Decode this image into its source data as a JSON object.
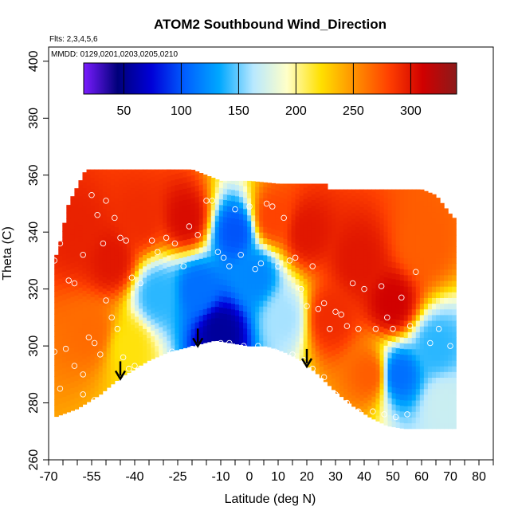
{
  "chart_data": {
    "type": "heatmap",
    "title": "ATOM2 Southbound Wind_Direction",
    "flights_note": "Flts: 2,3,4,5,6",
    "dates_note": "MMDD: 0129,0201,0203,0205,0210",
    "xlabel": "Latitude (deg N)",
    "ylabel": "Theta (C)",
    "xlim": [
      -70,
      85
    ],
    "ylim": [
      260,
      405
    ],
    "x_ticks": [
      -70,
      -55,
      -40,
      -25,
      -10,
      0,
      10,
      20,
      30,
      40,
      50,
      60,
      70,
      80
    ],
    "x_minor_ticks": [
      -65,
      -60,
      -50,
      -45,
      -35,
      -30,
      -20,
      -15,
      -5,
      5,
      15,
      25,
      35,
      45,
      55,
      65,
      75,
      85
    ],
    "y_ticks": [
      260,
      280,
      300,
      320,
      340,
      360,
      380,
      400
    ],
    "colorbar": {
      "range": [
        15,
        340
      ],
      "ticks": [
        50,
        100,
        150,
        200,
        250,
        300
      ],
      "colors": [
        "#7a1cff",
        "#00007a",
        "#0000d8",
        "#0060ff",
        "#00a8ff",
        "#b8e8ff",
        "#ffffc8",
        "#ffe000",
        "#ff9000",
        "#ff4000",
        "#d00000",
        "#8c1a1a"
      ]
    },
    "surface_theta": [
      [
        -68,
        275
      ],
      [
        -60,
        278
      ],
      [
        -52,
        283
      ],
      [
        -45,
        289
      ],
      [
        -40,
        292
      ],
      [
        -35,
        295
      ],
      [
        -28,
        298
      ],
      [
        -20,
        300
      ],
      [
        -12,
        302
      ],
      [
        -6,
        301
      ],
      [
        0,
        300
      ],
      [
        6,
        300
      ],
      [
        12,
        298
      ],
      [
        18,
        295
      ],
      [
        24,
        290
      ],
      [
        30,
        284
      ],
      [
        36,
        279
      ],
      [
        42,
        275
      ],
      [
        48,
        272
      ],
      [
        54,
        271
      ],
      [
        62,
        271
      ],
      [
        71,
        271
      ]
    ],
    "top_theta": [
      [
        -67,
        332
      ],
      [
        -63,
        350
      ],
      [
        -59,
        358
      ],
      [
        -57,
        362
      ],
      [
        -50,
        362
      ],
      [
        -40,
        362
      ],
      [
        -30,
        362
      ],
      [
        -20,
        362
      ],
      [
        -15,
        360
      ],
      [
        -10,
        358
      ],
      [
        0,
        358
      ],
      [
        10,
        357
      ],
      [
        20,
        357
      ],
      [
        27,
        357
      ],
      [
        27,
        355
      ],
      [
        40,
        355
      ],
      [
        50,
        355
      ],
      [
        60,
        355
      ],
      [
        65,
        353
      ],
      [
        71,
        345
      ]
    ],
    "wind_direction_regions": [
      {
        "lat": -60,
        "theta": 340,
        "value": 295
      },
      {
        "lat": -55,
        "theta": 305,
        "value": 265
      },
      {
        "lat": -48,
        "theta": 330,
        "value": 300
      },
      {
        "lat": -42,
        "theta": 300,
        "value": 220
      },
      {
        "lat": -38,
        "theta": 345,
        "value": 290
      },
      {
        "lat": -32,
        "theta": 318,
        "value": 140
      },
      {
        "lat": -22,
        "theta": 345,
        "value": 305
      },
      {
        "lat": -18,
        "theta": 320,
        "value": 110
      },
      {
        "lat": -10,
        "theta": 305,
        "value": 55
      },
      {
        "lat": -5,
        "theta": 340,
        "value": 100
      },
      {
        "lat": 2,
        "theta": 325,
        "value": 120
      },
      {
        "lat": 8,
        "theta": 345,
        "value": 280
      },
      {
        "lat": 12,
        "theta": 310,
        "value": 160
      },
      {
        "lat": 20,
        "theta": 340,
        "value": 300
      },
      {
        "lat": 28,
        "theta": 310,
        "value": 290
      },
      {
        "lat": 38,
        "theta": 330,
        "value": 300
      },
      {
        "lat": 42,
        "theta": 290,
        "value": 270
      },
      {
        "lat": 50,
        "theta": 315,
        "value": 310
      },
      {
        "lat": 52,
        "theta": 290,
        "value": 110
      },
      {
        "lat": 60,
        "theta": 335,
        "value": 270
      },
      {
        "lat": 65,
        "theta": 300,
        "value": 140
      },
      {
        "lat": 68,
        "theta": 280,
        "value": 170
      }
    ],
    "obs_points": [
      [
        -68,
        330
      ],
      [
        -66,
        336
      ],
      [
        -63,
        323
      ],
      [
        -61,
        322
      ],
      [
        -58,
        332
      ],
      [
        -55,
        353
      ],
      [
        -53,
        346
      ],
      [
        -51,
        336
      ],
      [
        -50,
        351
      ],
      [
        -47,
        345
      ],
      [
        -45,
        338
      ],
      [
        -43,
        337
      ],
      [
        -41,
        324
      ],
      [
        -38,
        322
      ],
      [
        -34,
        337
      ],
      [
        -32,
        333
      ],
      [
        -29,
        338
      ],
      [
        -26,
        336
      ],
      [
        -23,
        328
      ],
      [
        -21,
        342
      ],
      [
        -18,
        339
      ],
      [
        -15,
        351
      ],
      [
        -13,
        351
      ],
      [
        -11,
        333
      ],
      [
        -9,
        331
      ],
      [
        -7,
        328
      ],
      [
        -5,
        348
      ],
      [
        -3,
        332
      ],
      [
        0,
        349
      ],
      [
        2,
        327
      ],
      [
        4,
        329
      ],
      [
        6,
        350
      ],
      [
        8,
        349
      ],
      [
        10,
        328
      ],
      [
        12,
        345
      ],
      [
        14,
        330
      ],
      [
        16,
        331
      ],
      [
        18,
        320
      ],
      [
        20,
        314
      ],
      [
        22,
        328
      ],
      [
        24,
        313
      ],
      [
        26,
        315
      ],
      [
        28,
        306
      ],
      [
        30,
        312
      ],
      [
        32,
        311
      ],
      [
        34,
        307
      ],
      [
        36,
        322
      ],
      [
        38,
        306
      ],
      [
        40,
        320
      ],
      [
        44,
        306
      ],
      [
        46,
        321
      ],
      [
        48,
        310
      ],
      [
        50,
        306
      ],
      [
        53,
        317
      ],
      [
        56,
        307
      ],
      [
        58,
        326
      ],
      [
        63,
        301
      ],
      [
        66,
        306
      ],
      [
        70,
        300
      ],
      [
        -68,
        298
      ],
      [
        -66,
        285
      ],
      [
        -64,
        299
      ],
      [
        -61,
        293
      ],
      [
        -58,
        290
      ],
      [
        -56,
        303
      ],
      [
        -54,
        301
      ],
      [
        -52,
        297
      ],
      [
        -50,
        316
      ],
      [
        -48,
        310
      ],
      [
        -46,
        306
      ],
      [
        -44,
        296
      ],
      [
        -42,
        292
      ],
      [
        -40,
        293
      ],
      [
        -38,
        292
      ],
      [
        -35,
        293
      ],
      [
        -31,
        294
      ],
      [
        -27,
        298
      ],
      [
        -20,
        299
      ],
      [
        -15,
        300
      ],
      [
        -10,
        301
      ],
      [
        -7,
        301
      ],
      [
        -2,
        300
      ],
      [
        3,
        300
      ],
      [
        9,
        298
      ],
      [
        15,
        297
      ],
      [
        19,
        295
      ],
      [
        22,
        292
      ],
      [
        26,
        289
      ],
      [
        30,
        283
      ],
      [
        34,
        280
      ],
      [
        38,
        277
      ],
      [
        43,
        277
      ],
      [
        47,
        276
      ],
      [
        51,
        275
      ],
      [
        55,
        276
      ],
      [
        -58,
        283
      ],
      [
        -54,
        281
      ],
      [
        -48,
        280
      ]
    ],
    "arrows_lat": [
      -45,
      -18,
      20
    ]
  }
}
